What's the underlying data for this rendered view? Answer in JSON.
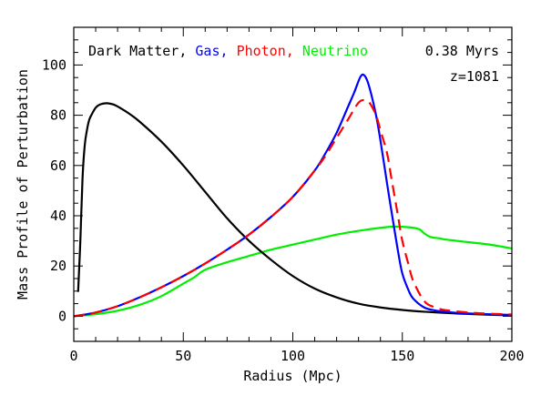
{
  "chart_data": {
    "type": "line",
    "xlabel": "Radius (Mpc)",
    "ylabel": "Mass Profile of Perturbation",
    "xlim": [
      0,
      200
    ],
    "ylim": [
      -10,
      115
    ],
    "x_ticks": [
      0,
      50,
      100,
      150,
      200
    ],
    "y_ticks": [
      0,
      20,
      40,
      60,
      80,
      100
    ],
    "annotations": [
      "0.38 Myrs",
      "z=1081"
    ],
    "legend_placement": "top-left",
    "legend_separator": ", ",
    "series": [
      {
        "name": "Dark Matter",
        "color": "#000000",
        "style": "solid",
        "x": [
          2,
          3,
          4,
          5,
          6,
          7,
          8,
          10,
          12,
          15,
          18,
          20,
          25,
          30,
          40,
          50,
          60,
          70,
          80,
          90,
          100,
          110,
          120,
          130,
          140,
          150,
          160,
          170,
          180,
          190,
          200
        ],
        "y": [
          10,
          30,
          55,
          68,
          74,
          78,
          80,
          83,
          84.3,
          84.8,
          84.3,
          83.5,
          80.8,
          77.5,
          69.5,
          60,
          49.5,
          39,
          30,
          22.5,
          16,
          11,
          7.5,
          5,
          3.5,
          2.5,
          1.8,
          1.3,
          0.9,
          0.6,
          0.4
        ]
      },
      {
        "name": "Gas",
        "color": "#0000ff",
        "style": "solid",
        "x": [
          0,
          10,
          20,
          30,
          40,
          50,
          60,
          70,
          80,
          90,
          100,
          110,
          115,
          120,
          125,
          128,
          131,
          133,
          135,
          138,
          140,
          143,
          145,
          148,
          150,
          153,
          155,
          160,
          165,
          170,
          180,
          190,
          200
        ],
        "y": [
          0,
          1.5,
          4,
          7.5,
          11.5,
          16,
          21,
          26.5,
          32.5,
          39.5,
          47.5,
          58,
          65,
          73,
          83,
          89,
          95.5,
          95.5,
          91,
          80,
          70,
          53,
          42,
          26,
          17,
          10,
          7,
          3.5,
          2.3,
          1.7,
          1.1,
          0.8,
          0.5
        ]
      },
      {
        "name": "Photon",
        "color": "#ff0000",
        "style": "dashed",
        "x": [
          0,
          10,
          20,
          30,
          40,
          50,
          60,
          70,
          80,
          90,
          100,
          110,
          115,
          120,
          125,
          130,
          133,
          135,
          138,
          140,
          143,
          145,
          148,
          150,
          153,
          155,
          160,
          165,
          170,
          180,
          190,
          200
        ],
        "y": [
          0,
          1.5,
          4,
          7.5,
          11.5,
          16,
          21,
          26.5,
          32.5,
          39.5,
          47.5,
          58,
          64,
          71,
          78,
          85,
          86,
          85,
          80,
          74,
          65,
          55,
          40,
          30,
          20,
          14,
          6,
          3.5,
          2.4,
          1.5,
          1,
          0.7
        ]
      },
      {
        "name": "Neutrino",
        "color": "#00ee00",
        "style": "solid",
        "x": [
          0,
          10,
          20,
          30,
          40,
          50,
          55,
          58,
          60,
          63,
          70,
          80,
          90,
          100,
          110,
          120,
          130,
          140,
          145,
          150,
          155,
          158,
          160,
          163,
          167,
          170,
          180,
          190,
          200
        ],
        "y": [
          0,
          0.8,
          2.2,
          4.5,
          8,
          13,
          15.5,
          17.5,
          18.5,
          19.5,
          21.5,
          24,
          26.5,
          28.5,
          30.5,
          32.5,
          34,
          35.2,
          35.6,
          35.6,
          35.2,
          34.5,
          33,
          31.5,
          31,
          30.5,
          29.5,
          28.5,
          27
        ]
      }
    ]
  }
}
